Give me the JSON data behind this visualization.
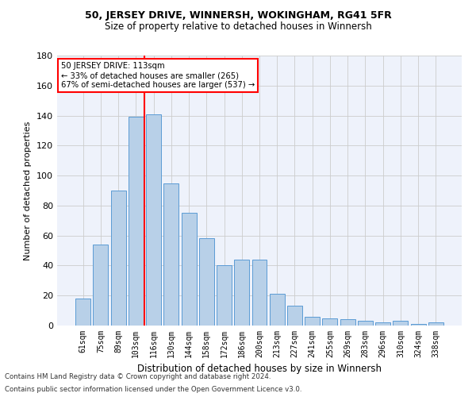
{
  "title1": "50, JERSEY DRIVE, WINNERSH, WOKINGHAM, RG41 5FR",
  "title2": "Size of property relative to detached houses in Winnersh",
  "xlabel": "Distribution of detached houses by size in Winnersh",
  "ylabel": "Number of detached properties",
  "categories": [
    "61sqm",
    "75sqm",
    "89sqm",
    "103sqm",
    "116sqm",
    "130sqm",
    "144sqm",
    "158sqm",
    "172sqm",
    "186sqm",
    "200sqm",
    "213sqm",
    "227sqm",
    "241sqm",
    "255sqm",
    "269sqm",
    "283sqm",
    "296sqm",
    "310sqm",
    "324sqm",
    "338sqm"
  ],
  "values": [
    18,
    54,
    90,
    139,
    141,
    95,
    75,
    58,
    40,
    44,
    44,
    21,
    13,
    6,
    5,
    4,
    3,
    2,
    3,
    1,
    2
  ],
  "bar_color": "#b8d0e8",
  "bar_edge_color": "#5b9bd5",
  "grid_color": "#cccccc",
  "vline_x": 3.5,
  "vline_color": "red",
  "annotation_text": "50 JERSEY DRIVE: 113sqm\n← 33% of detached houses are smaller (265)\n67% of semi-detached houses are larger (537) →",
  "annotation_box_color": "white",
  "annotation_box_edge": "red",
  "footnote1": "Contains HM Land Registry data © Crown copyright and database right 2024.",
  "footnote2": "Contains public sector information licensed under the Open Government Licence v3.0.",
  "ylim": [
    0,
    180
  ],
  "bg_color": "#eef2fb"
}
